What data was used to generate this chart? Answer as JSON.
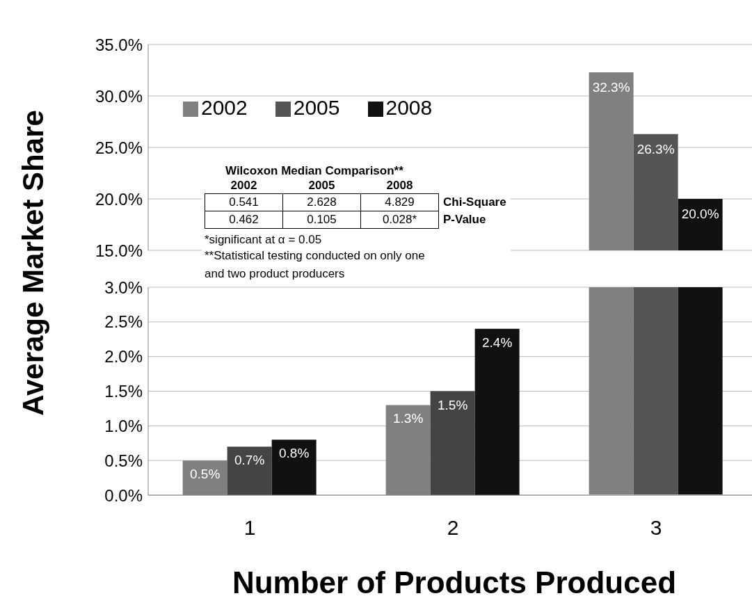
{
  "chart_data": [
    {
      "type": "bar",
      "categories": [
        "1",
        "2",
        "3"
      ],
      "ylabel": "Average Market Share",
      "ylim": [
        15,
        35
      ],
      "yticks": [
        {
          "value": 15,
          "label": "15.0%"
        },
        {
          "value": 20,
          "label": "20.0%"
        },
        {
          "value": 25,
          "label": "25.0%"
        },
        {
          "value": 30,
          "label": "30.0%"
        },
        {
          "value": 35,
          "label": "35.0%"
        }
      ],
      "series": [
        {
          "name": "2002",
          "color": "#808080",
          "values": [
            null,
            null,
            32.3
          ],
          "value_labels": [
            null,
            null,
            "32.3%"
          ]
        },
        {
          "name": "2005",
          "color": "#555555",
          "values": [
            null,
            null,
            26.3
          ],
          "value_labels": [
            null,
            null,
            "26.3%"
          ]
        },
        {
          "name": "2008",
          "color": "#111111",
          "values": [
            null,
            null,
            20.0
          ],
          "value_labels": [
            null,
            null,
            "20.0%"
          ]
        }
      ],
      "grid": "y",
      "legend": "top left",
      "tick_labels": "y",
      "annotations": [
        "Wilcoxon Median Comparison**",
        "2002",
        "2005",
        "2008",
        "0.541",
        "2.628",
        "4.829",
        "Chi-Square",
        "0.462",
        "0.105",
        "0.028*",
        "P-Value",
        "*significant at α = 0.05",
        "**Statistical testing conducted on only one and two product producers"
      ]
    },
    {
      "type": "bar",
      "categories": [
        "1",
        "2",
        "3"
      ],
      "xlabel": "Number of Products Produced",
      "ylim": [
        0,
        3
      ],
      "yticks": [
        {
          "value": 0,
          "label": "0.0%"
        },
        {
          "value": 0.5,
          "label": "0.5%"
        },
        {
          "value": 1,
          "label": "1.0%"
        },
        {
          "value": 1.5,
          "label": "1.5%"
        },
        {
          "value": 2,
          "label": "2.0%"
        },
        {
          "value": 2.5,
          "label": "2.5%"
        },
        {
          "value": 3,
          "label": "3.0%"
        }
      ],
      "series": [
        {
          "color": "#808080",
          "values": [
            0.5,
            1.3,
            null
          ],
          "value_labels": [
            "0.5%",
            "1.3%",
            null
          ]
        },
        {
          "color": "#444444",
          "values": [
            0.7,
            1.5,
            null
          ],
          "value_labels": [
            "0.7%",
            "1.5%",
            null
          ]
        },
        {
          "color": "#111111",
          "values": [
            0.8,
            2.4,
            null
          ],
          "value_labels": [
            "0.8%",
            "2.4%",
            null
          ]
        }
      ],
      "grid": "y"
    }
  ]
}
